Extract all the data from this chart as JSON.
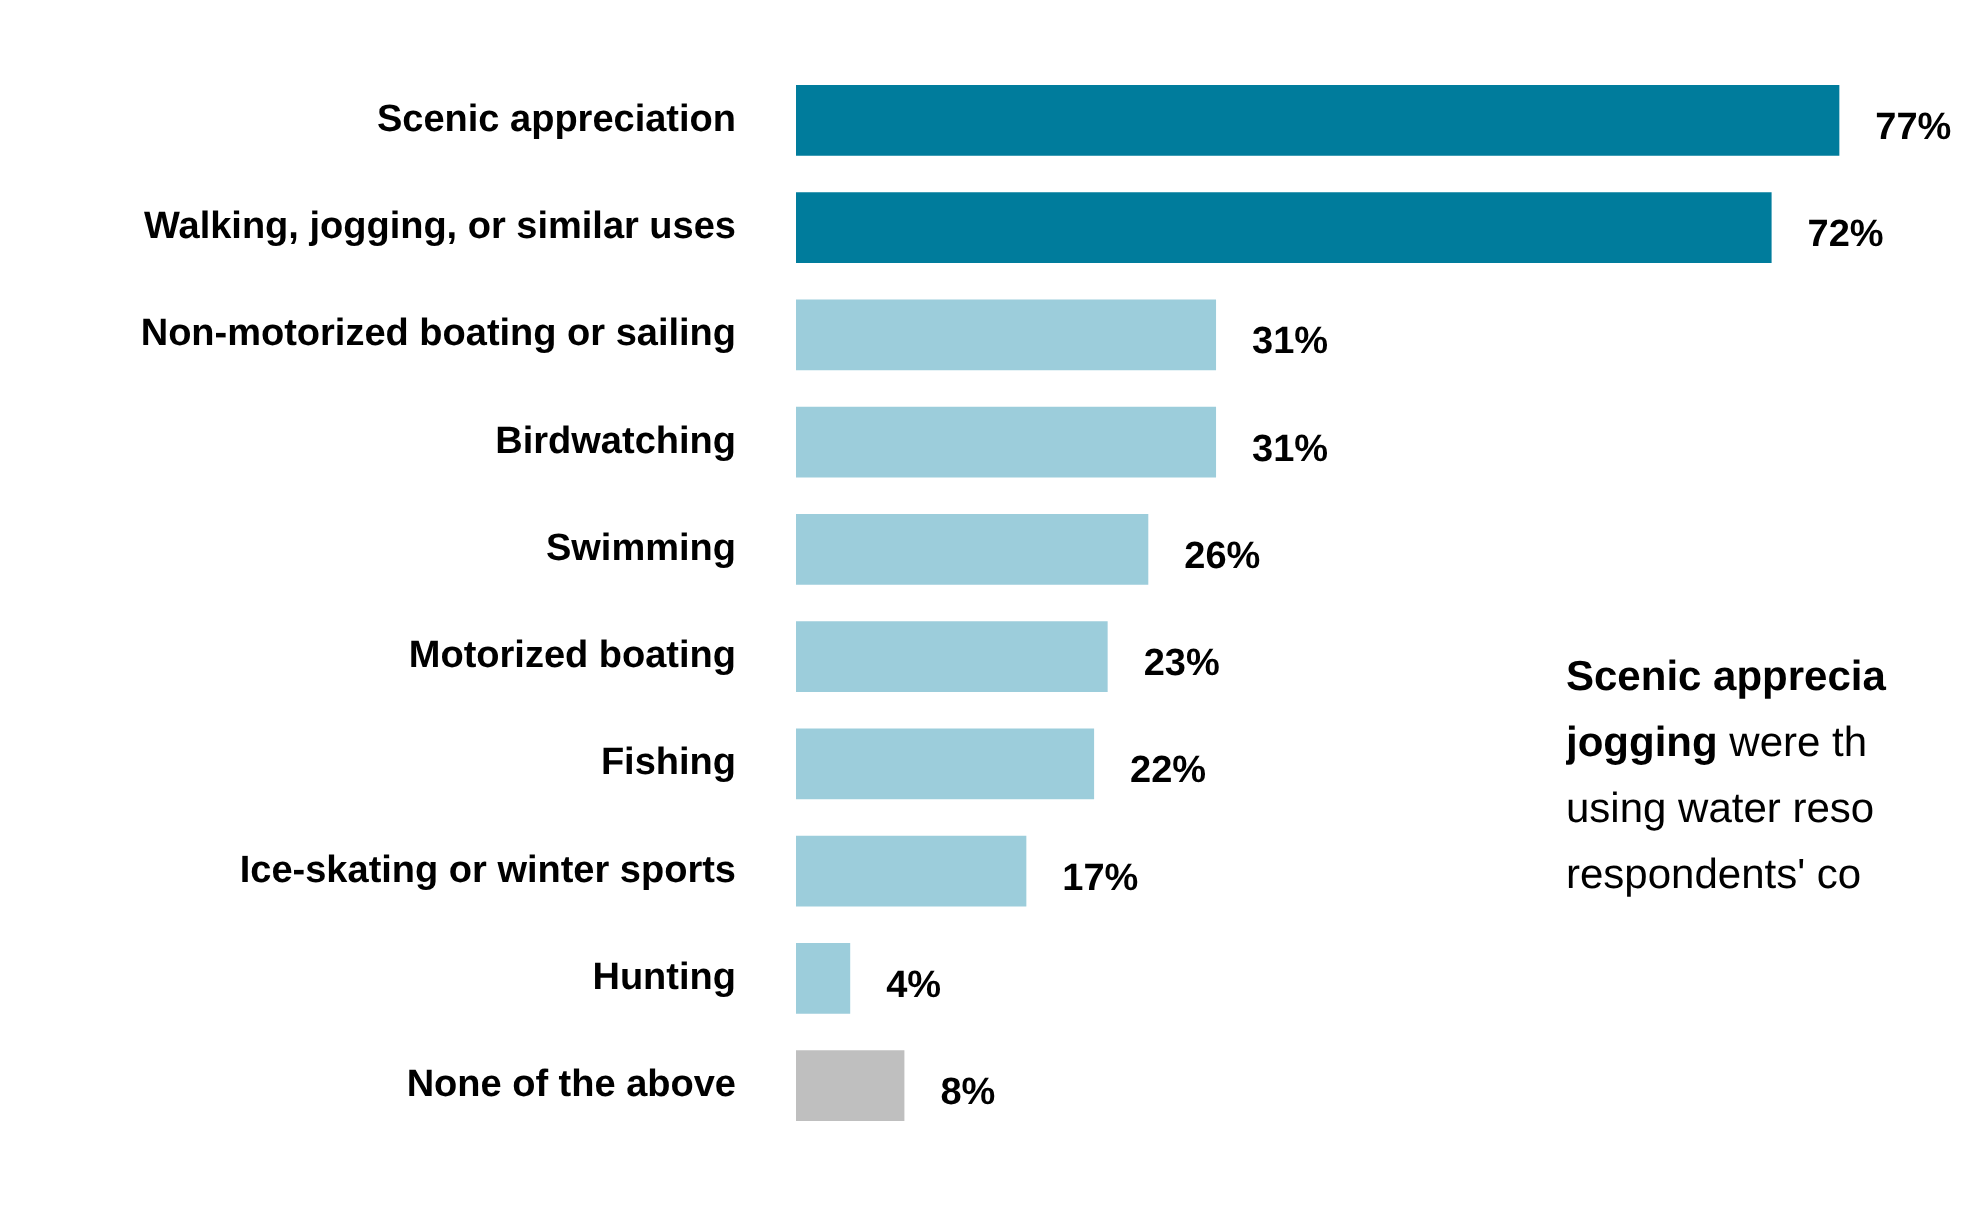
{
  "chart_data": {
    "type": "bar",
    "orientation": "horizontal",
    "categories": [
      "Scenic appreciation",
      "Walking, jogging, or similar uses",
      "Non-motorized boating or sailing",
      "Birdwatching",
      "Swimming",
      "Motorized boating",
      "Fishing",
      "Ice-skating or winter sports",
      "Hunting",
      "None of the above"
    ],
    "values": [
      77,
      72,
      31,
      31,
      26,
      23,
      22,
      17,
      4,
      8
    ],
    "colors": [
      "#007c9c",
      "#007c9c",
      "#9ccddb",
      "#9ccddb",
      "#9ccddb",
      "#9ccddb",
      "#9ccddb",
      "#9ccddb",
      "#9ccddb",
      "#bfbfbf"
    ],
    "value_labels": [
      "77%",
      "72%",
      "31%",
      "31%",
      "26%",
      "23%",
      "22%",
      "17%",
      "4%",
      "8%"
    ],
    "tick_labels": "y",
    "grid": false,
    "legend": false,
    "annotations": [
      "Scenic apprecia",
      "jogging were th",
      "using water reso",
      "respondents' co"
    ]
  }
}
